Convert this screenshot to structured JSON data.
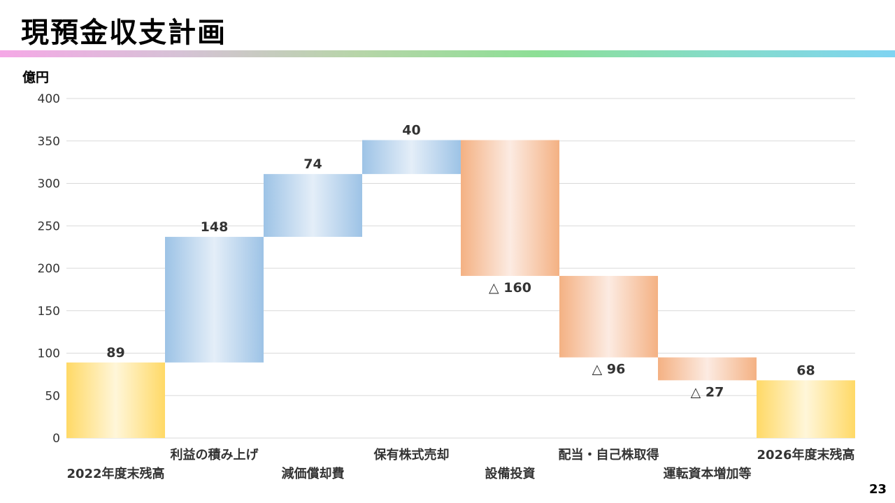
{
  "header": {
    "title": "現預金収支計画"
  },
  "unit": "億円",
  "page_number": "23",
  "colors": {
    "start_end": "#ffd966",
    "increase": "#9dc3e6",
    "decrease": "#f4b183",
    "grid": "#d9d9d9"
  },
  "chart_data": {
    "type": "bar",
    "subtype": "waterfall",
    "ylabel": "億円",
    "ylim": [
      0,
      400
    ],
    "yticks": [
      0,
      50,
      100,
      150,
      200,
      250,
      300,
      350,
      400
    ],
    "grid": true,
    "categories": [
      "2022年度末残高",
      "利益の積み上げ",
      "減価償却費",
      "保有株式売却",
      "設備投資",
      "配当・自己株取得",
      "運転資本増加等",
      "2026年度末残高"
    ],
    "steps": [
      {
        "kind": "total",
        "value": 89,
        "label": "89"
      },
      {
        "kind": "increase",
        "value": 148,
        "label": "148"
      },
      {
        "kind": "increase",
        "value": 74,
        "label": "74"
      },
      {
        "kind": "increase",
        "value": 40,
        "label": "40"
      },
      {
        "kind": "decrease",
        "value": -160,
        "label": "△ 160"
      },
      {
        "kind": "decrease",
        "value": -96,
        "label": "△ 96"
      },
      {
        "kind": "decrease",
        "value": -27,
        "label": "△ 27"
      },
      {
        "kind": "total",
        "value": 68,
        "label": "68"
      }
    ]
  }
}
